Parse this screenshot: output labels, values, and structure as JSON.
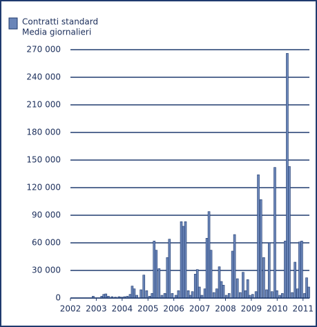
{
  "chart_data": {
    "type": "bar",
    "series": [
      {
        "name": "Contratti standard",
        "description": "Media giornalieri",
        "color": "#6a85b8",
        "edge": "#1f3a6e",
        "x": [
          2002.88,
          2003.21,
          2003.29,
          2003.37,
          2003.47,
          2003.61,
          2003.74,
          2003.88,
          2003.98,
          2004.09,
          2004.2,
          2004.31,
          2004.39,
          2004.47,
          2004.57,
          2004.73,
          2004.84,
          2004.95,
          2005.06,
          2005.16,
          2005.24,
          2005.32,
          2005.43,
          2005.54,
          2005.65,
          2005.75,
          2005.83,
          2005.94,
          2006.08,
          2006.18,
          2006.29,
          2006.37,
          2006.45,
          2006.56,
          2006.64,
          2006.72,
          2006.83,
          2006.91,
          2006.99,
          2007.09,
          2007.2,
          2007.28,
          2007.36,
          2007.44,
          2007.55,
          2007.66,
          2007.76,
          2007.84,
          2007.92,
          2008.03,
          2008.14,
          2008.27,
          2008.35,
          2008.46,
          2008.57,
          2008.68,
          2008.78,
          2008.86,
          2008.94,
          2009.05,
          2009.18,
          2009.27,
          2009.37,
          2009.48,
          2009.59,
          2009.69,
          2009.8,
          2009.91,
          2009.99,
          2010.1,
          2010.2,
          2010.31,
          2010.39,
          2010.47,
          2010.58,
          2010.69,
          2010.79,
          2010.87,
          2010.95,
          2011.06,
          2011.14,
          2011.22
        ],
        "values": [
          2000,
          2000,
          4000,
          4500,
          2000,
          1500,
          1000,
          1500,
          1000,
          1500,
          2000,
          4000,
          13000,
          10000,
          3000,
          9000,
          25000,
          8000,
          2000,
          5000,
          62000,
          52000,
          32000,
          3000,
          5000,
          44000,
          64000,
          5000,
          3000,
          8000,
          83000,
          78000,
          83000,
          8000,
          3000,
          7000,
          26000,
          31000,
          12000,
          3000,
          10000,
          65000,
          94000,
          52000,
          6000,
          10000,
          34000,
          18000,
          14000,
          3000,
          5000,
          51000,
          69000,
          21000,
          6000,
          28000,
          8000,
          20000,
          3000,
          4000,
          7000,
          134000,
          107000,
          44000,
          9000,
          60000,
          7000,
          142000,
          8000,
          3000,
          5000,
          62000,
          266000,
          143000,
          6000,
          39000,
          10000,
          61000,
          62000,
          5000,
          22000,
          12000
        ]
      }
    ],
    "xlim": [
      2002,
      2011.3
    ],
    "xticks": [
      2002,
      2003,
      2004,
      2005,
      2006,
      2007,
      2008,
      2009,
      2010,
      2011
    ],
    "ylim": [
      0,
      270000
    ],
    "yticks": [
      0,
      {
        "value": 30000,
        "label": "30 000"
      },
      {
        "value": 60000,
        "label": "60 000"
      },
      {
        "value": 90000,
        "label": "90 000"
      },
      {
        "value": 120000,
        "label": "120 000"
      },
      {
        "value": 150000,
        "label": "150 000"
      },
      {
        "value": 180000,
        "label": "180 000"
      },
      {
        "value": 210000,
        "label": "210 000"
      },
      {
        "value": 240000,
        "label": "240 000"
      },
      {
        "value": 270000,
        "label": "270 000"
      }
    ],
    "grid": true,
    "legend": "top-left"
  }
}
